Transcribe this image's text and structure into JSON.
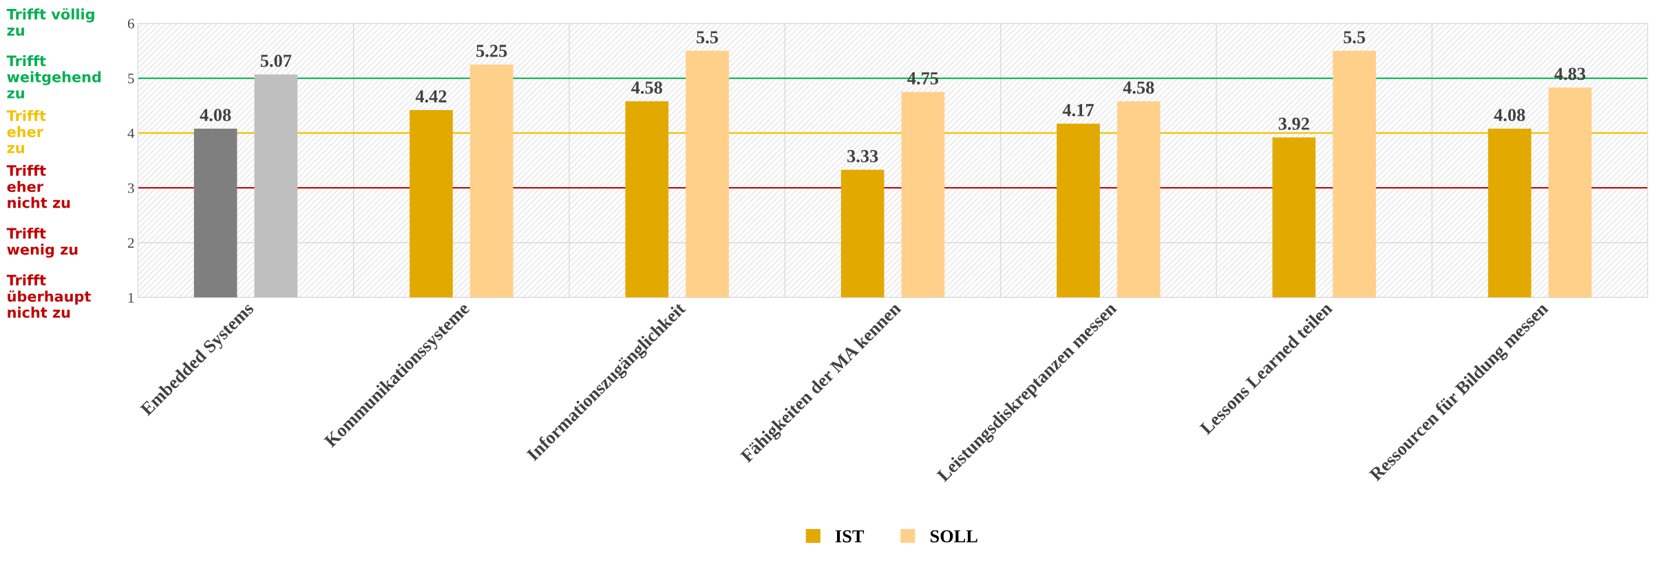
{
  "chart_data": {
    "type": "bar",
    "categories": [
      "Embedded Systems",
      "Kommunikationssysteme",
      "Informationszugänglichkeit",
      "Fähigkeiten der MA kennen",
      "Leistungsdiskreptanzen messen",
      "Lessons Learned teilen",
      "Ressourcen für Bildung messen"
    ],
    "series": [
      {
        "name": "IST",
        "color": "#e2a900",
        "colors": [
          "#7f7f7f",
          "#e2a900",
          "#e2a900",
          "#e2a900",
          "#e2a900",
          "#e2a900",
          "#e2a900"
        ],
        "values": [
          4.08,
          4.42,
          4.58,
          3.33,
          4.17,
          3.92,
          4.08
        ]
      },
      {
        "name": "SOLL",
        "color": "#ffd08a",
        "colors": [
          "#bfbfbf",
          "#ffd08a",
          "#ffd08a",
          "#ffd08a",
          "#ffd08a",
          "#ffd08a",
          "#ffd08a"
        ],
        "values": [
          5.07,
          5.25,
          5.5,
          4.75,
          4.58,
          5.5,
          4.83
        ]
      }
    ],
    "ylim": [
      1,
      6
    ],
    "yticks": [
      1,
      2,
      3,
      4,
      5,
      6
    ],
    "ref_lines": [
      {
        "axis": "y",
        "value": 5,
        "color": "#00b050"
      },
      {
        "axis": "y",
        "value": 4,
        "color": "#f2c200"
      },
      {
        "axis": "y",
        "value": 3,
        "color": "#c00000"
      }
    ],
    "annotations": [
      "Trifft völlig\nzu",
      "Trifft\nweitgehend\nzu",
      "Trifft\neher\nzu",
      "Trifft\neher\nnicht zu",
      "Trifft\nwenig zu",
      "Trifft\nüberhaupt\nnicht zu"
    ],
    "data_labels": true,
    "grid": true,
    "legend": "bottom"
  }
}
